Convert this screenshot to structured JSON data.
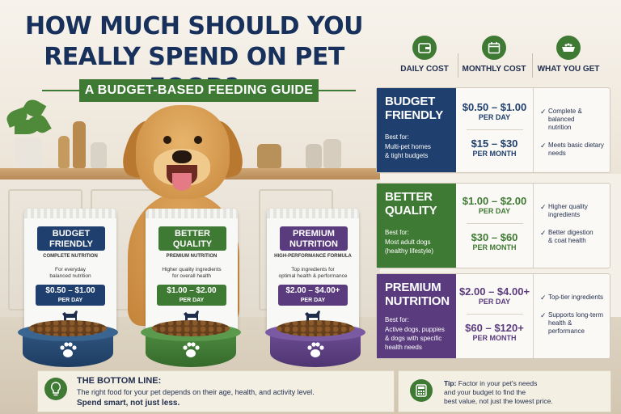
{
  "title_line1": "HOW MUCH SHOULD YOU",
  "title_line2": "REALLY SPEND ON PET FOOD?",
  "subtitle": "A BUDGET-BASED FEEDING GUIDE",
  "bags": [
    {
      "line1": "BUDGET",
      "line2": "FRIENDLY",
      "kind": "COMPLETE NUTRITION",
      "desc1": "For everyday",
      "desc2": "balanced nutrition",
      "price": "$0.50 – $1.00",
      "per": "PER DAY",
      "color": "#1f3f6e"
    },
    {
      "line1": "BETTER",
      "line2": "QUALITY",
      "kind": "PREMIUM NUTRITION",
      "desc1": "Higher quality ingredients",
      "desc2": "for overall health",
      "price": "$1.00 – $2.00",
      "per": "PER DAY",
      "color": "#3f7a34"
    },
    {
      "line1": "PREMIUM",
      "line2": "NUTRITION",
      "kind": "HIGH-PERFORMANCE FORMULA",
      "desc1": "Top ingredients for",
      "desc2": "optimal health & performance",
      "price": "$2.00 – $4.00+",
      "per": "PER DAY",
      "color": "#5a3c7e"
    }
  ],
  "columns": {
    "daily": "DAILY COST",
    "monthly": "MONTHLY COST",
    "get": "WHAT YOU GET"
  },
  "rows": [
    {
      "name1": "BUDGET",
      "name2": "FRIENDLY",
      "best_for_label": "Best for:",
      "best_for1": "Multi-pet homes",
      "best_for2": "& tight budgets",
      "daily": "$0.50 – $1.00",
      "daily_per": "PER DAY",
      "monthly": "$15 – $30",
      "monthly_per": "PER MONTH",
      "get1a": "Complete & balanced",
      "get1b": "nutrition",
      "get2a": "Meets basic dietary",
      "get2b": "needs",
      "color": "#1f3f6e"
    },
    {
      "name1": "BETTER",
      "name2": "QUALITY",
      "best_for_label": "Best for:",
      "best_for1": "Most adult dogs",
      "best_for2": "(healthy lifestyle)",
      "daily": "$1.00 – $2.00",
      "daily_per": "PER DAY",
      "monthly": "$30 – $60",
      "monthly_per": "PER MONTH",
      "get1a": "Higher quality",
      "get1b": "ingredients",
      "get2a": "Better digestion",
      "get2b": "& coat health",
      "color": "#3f7a34"
    },
    {
      "name1": "PREMIUM",
      "name2": "NUTRITION",
      "best_for_label": "Best for:",
      "best_for1": "Active dogs, puppies",
      "best_for2": "& dogs with specific",
      "best_for3": "health needs",
      "daily": "$2.00 – $4.00+",
      "daily_per": "PER DAY",
      "monthly": "$60 – $120+",
      "monthly_per": "PER MONTH",
      "get1a": "Top-tier ingredients",
      "get1b": "",
      "get2a": "Supports long-term",
      "get2b": "health & performance",
      "color": "#5a3c7e"
    }
  ],
  "bottom": {
    "heading": "THE BOTTOM LINE:",
    "text": "The right food for your pet depends on their age, health, and activity level.",
    "emphasis": "Spend smart, not just less."
  },
  "tip": {
    "label": "Tip:",
    "text1": " Factor in your pet's needs",
    "text2": "and your budget to find the",
    "text3": "best value, not just the lowest price."
  },
  "icons": [
    "wallet-icon",
    "calendar-icon",
    "food-bowl-icon",
    "lightbulb-icon",
    "calculator-icon",
    "paw-icon",
    "dog-silhouette-icon",
    "checkmark-icon"
  ]
}
